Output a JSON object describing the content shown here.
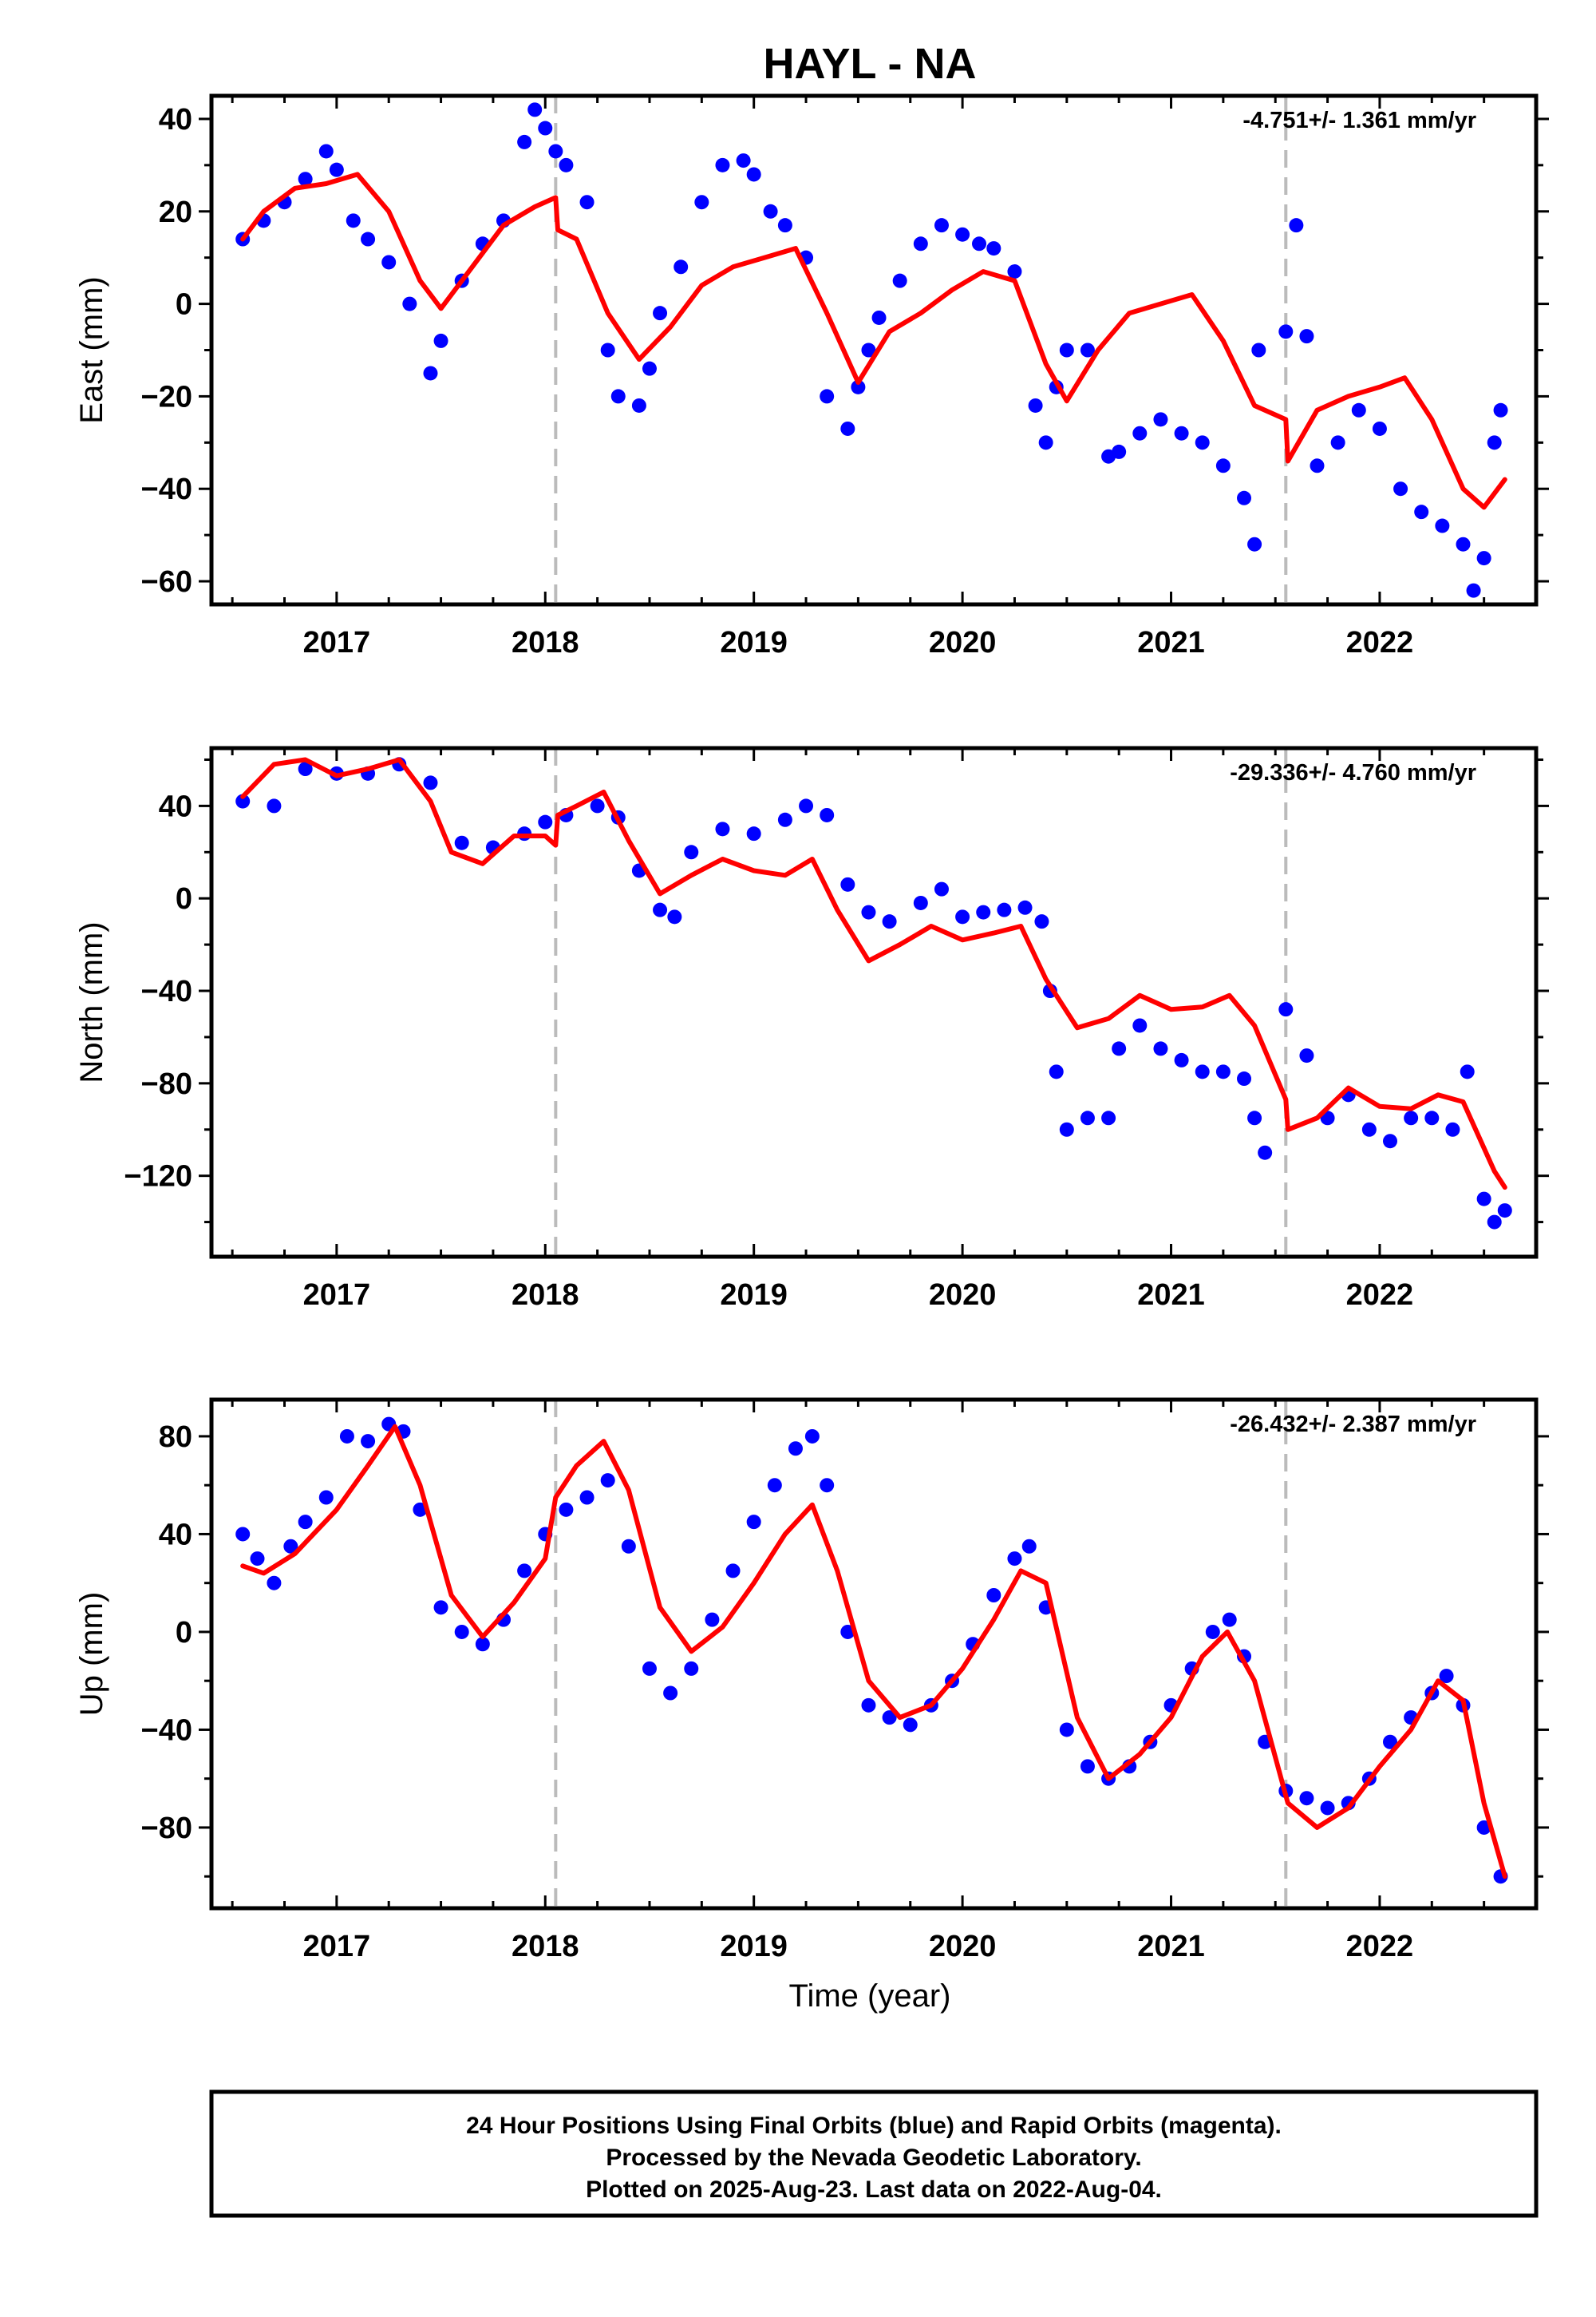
{
  "title": "HAYL - NA",
  "xlabel": "Time (year)",
  "footer": {
    "lines": [
      "24 Hour Positions Using Final Orbits (blue) and Rapid Orbits (magenta).",
      "Processed by the Nevada Geodetic Laboratory.",
      "Plotted on 2025-Aug-23. Last data on 2022-Aug-04."
    ]
  },
  "colors": {
    "data": "#0000ff",
    "model": "#ff0000",
    "steps": "#bbbbbb",
    "frame": "#000000"
  },
  "chart_data": [
    {
      "type": "scatter",
      "component": "East",
      "ylabel": "East (mm)",
      "rate": "-4.751+/- 1.361 mm/yr",
      "xlim": [
        2016.4,
        2022.75
      ],
      "ylim": [
        -65,
        45
      ],
      "xticks": [
        2017,
        2018,
        2019,
        2020,
        2021,
        2022
      ],
      "yticks": [
        -60,
        -40,
        -20,
        0,
        20,
        40
      ],
      "step_epochs": [
        2018.05,
        2021.55
      ],
      "series": [
        {
          "style": "points",
          "color": "#0000ff",
          "x": [
            2016.55,
            2016.65,
            2016.75,
            2016.85,
            2016.95,
            2017.0,
            2017.08,
            2017.15,
            2017.25,
            2017.35,
            2017.45,
            2017.5,
            2017.6,
            2017.7,
            2017.8,
            2017.9,
            2017.95,
            2018.0,
            2018.05,
            2018.1,
            2018.2,
            2018.3,
            2018.35,
            2018.45,
            2018.5,
            2018.55,
            2018.65,
            2018.75,
            2018.85,
            2018.95,
            2019.0,
            2019.08,
            2019.15,
            2019.25,
            2019.35,
            2019.45,
            2019.5,
            2019.55,
            2019.6,
            2019.7,
            2019.8,
            2019.9,
            2020.0,
            2020.08,
            2020.15,
            2020.25,
            2020.35,
            2020.4,
            2020.45,
            2020.5,
            2020.6,
            2020.7,
            2020.75,
            2020.85,
            2020.95,
            2021.05,
            2021.15,
            2021.25,
            2021.35,
            2021.4,
            2021.42,
            2021.55,
            2021.6,
            2021.65,
            2021.7,
            2021.8,
            2021.9,
            2022.0,
            2022.1,
            2022.2,
            2022.3,
            2022.4,
            2022.45,
            2022.5,
            2022.55,
            2022.58
          ],
          "y": [
            14,
            18,
            22,
            27,
            33,
            29,
            18,
            14,
            9,
            0,
            -15,
            -8,
            5,
            13,
            18,
            35,
            42,
            38,
            33,
            30,
            22,
            -10,
            -20,
            -22,
            -14,
            -2,
            8,
            22,
            30,
            31,
            28,
            20,
            17,
            10,
            -20,
            -27,
            -18,
            -10,
            -3,
            5,
            13,
            17,
            15,
            13,
            12,
            7,
            -22,
            -30,
            -18,
            -10,
            -10,
            -33,
            -32,
            -28,
            -25,
            -28,
            -30,
            -35,
            -42,
            -52,
            -10,
            -6,
            17,
            -7,
            -35,
            -30,
            -23,
            -27,
            -40,
            -45,
            -48,
            -52,
            -62,
            -55,
            -30,
            -23
          ]
        },
        {
          "style": "line",
          "color": "#ff0000",
          "x": [
            2016.55,
            2016.65,
            2016.8,
            2016.95,
            2017.1,
            2017.25,
            2017.4,
            2017.5,
            2017.65,
            2017.8,
            2017.95,
            2018.05,
            2018.06,
            2018.15,
            2018.3,
            2018.45,
            2018.6,
            2018.75,
            2018.9,
            2019.05,
            2019.2,
            2019.35,
            2019.5,
            2019.65,
            2019.8,
            2019.95,
            2020.1,
            2020.25,
            2020.4,
            2020.5,
            2020.65,
            2020.8,
            2020.95,
            2021.1,
            2021.25,
            2021.4,
            2021.55,
            2021.56,
            2021.7,
            2021.85,
            2022.0,
            2022.12,
            2022.25,
            2022.4,
            2022.5,
            2022.6
          ],
          "y": [
            14,
            20,
            25,
            26,
            28,
            20,
            5,
            -1,
            8,
            17,
            21,
            23,
            16,
            14,
            -2,
            -12,
            -5,
            4,
            8,
            10,
            12,
            -2,
            -17,
            -6,
            -2,
            3,
            7,
            5,
            -13,
            -21,
            -10,
            -2,
            0,
            2,
            -8,
            -22,
            -25,
            -34,
            -23,
            -20,
            -18,
            -16,
            -25,
            -40,
            -44,
            -38
          ]
        }
      ]
    },
    {
      "type": "scatter",
      "component": "North",
      "ylabel": "North (mm)",
      "rate": "-29.336+/- 4.760 mm/yr",
      "xlim": [
        2016.4,
        2022.75
      ],
      "ylim": [
        -155,
        65
      ],
      "xticks": [
        2017,
        2018,
        2019,
        2020,
        2021,
        2022
      ],
      "yticks": [
        -120,
        -80,
        -40,
        0,
        40
      ],
      "step_epochs": [
        2018.05,
        2021.55
      ],
      "series": [
        {
          "style": "points",
          "color": "#0000ff",
          "x": [
            2016.55,
            2016.7,
            2016.85,
            2017.0,
            2017.15,
            2017.3,
            2017.45,
            2017.6,
            2017.75,
            2017.9,
            2018.0,
            2018.1,
            2018.25,
            2018.35,
            2018.45,
            2018.55,
            2018.62,
            2018.7,
            2018.85,
            2019.0,
            2019.15,
            2019.25,
            2019.35,
            2019.45,
            2019.55,
            2019.65,
            2019.8,
            2019.9,
            2020.0,
            2020.1,
            2020.2,
            2020.3,
            2020.38,
            2020.42,
            2020.45,
            2020.5,
            2020.6,
            2020.7,
            2020.75,
            2020.85,
            2020.95,
            2021.05,
            2021.15,
            2021.25,
            2021.35,
            2021.4,
            2021.45,
            2021.55,
            2021.65,
            2021.75,
            2021.85,
            2021.95,
            2022.05,
            2022.15,
            2022.25,
            2022.35,
            2022.42,
            2022.5,
            2022.55,
            2022.6
          ],
          "y": [
            42,
            40,
            56,
            54,
            54,
            58,
            50,
            24,
            22,
            28,
            33,
            36,
            40,
            35,
            12,
            -5,
            -8,
            20,
            30,
            28,
            34,
            40,
            36,
            6,
            -6,
            -10,
            -2,
            4,
            -8,
            -6,
            -5,
            -4,
            -10,
            -40,
            -75,
            -100,
            -95,
            -95,
            -65,
            -55,
            -65,
            -70,
            -75,
            -75,
            -78,
            -95,
            -110,
            -48,
            -68,
            -95,
            -85,
            -100,
            -105,
            -95,
            -95,
            -100,
            -75,
            -130,
            -140,
            -135
          ]
        },
        {
          "style": "line",
          "color": "#ff0000",
          "x": [
            2016.55,
            2016.7,
            2016.85,
            2017.0,
            2017.15,
            2017.3,
            2017.45,
            2017.55,
            2017.7,
            2017.85,
            2018.0,
            2018.05,
            2018.06,
            2018.15,
            2018.28,
            2018.4,
            2018.55,
            2018.7,
            2018.85,
            2019.0,
            2019.15,
            2019.28,
            2019.4,
            2019.55,
            2019.7,
            2019.85,
            2020.0,
            2020.15,
            2020.28,
            2020.4,
            2020.55,
            2020.7,
            2020.85,
            2021.0,
            2021.15,
            2021.28,
            2021.4,
            2021.55,
            2021.56,
            2021.7,
            2021.85,
            2022.0,
            2022.15,
            2022.28,
            2022.4,
            2022.55,
            2022.6
          ],
          "y": [
            44,
            58,
            60,
            53,
            56,
            60,
            42,
            20,
            15,
            27,
            27,
            23,
            36,
            40,
            46,
            25,
            2,
            10,
            17,
            12,
            10,
            17,
            -5,
            -27,
            -20,
            -12,
            -18,
            -15,
            -12,
            -35,
            -56,
            -52,
            -42,
            -48,
            -47,
            -42,
            -55,
            -87,
            -100,
            -95,
            -82,
            -90,
            -91,
            -85,
            -88,
            -118,
            -125
          ]
        }
      ]
    },
    {
      "type": "scatter",
      "component": "Up",
      "ylabel": "Up (mm)",
      "rate": "-26.432+/- 2.387 mm/yr",
      "xlim": [
        2016.4,
        2022.75
      ],
      "ylim": [
        -113,
        95
      ],
      "xticks": [
        2017,
        2018,
        2019,
        2020,
        2021,
        2022
      ],
      "yticks": [
        -80,
        -40,
        0,
        40,
        80
      ],
      "step_epochs": [
        2018.05,
        2021.55
      ],
      "series": [
        {
          "style": "points",
          "color": "#0000ff",
          "x": [
            2016.55,
            2016.62,
            2016.7,
            2016.78,
            2016.85,
            2016.95,
            2017.05,
            2017.15,
            2017.25,
            2017.32,
            2017.4,
            2017.5,
            2017.6,
            2017.7,
            2017.8,
            2017.9,
            2018.0,
            2018.1,
            2018.2,
            2018.3,
            2018.4,
            2018.5,
            2018.6,
            2018.7,
            2018.8,
            2018.9,
            2019.0,
            2019.1,
            2019.2,
            2019.28,
            2019.35,
            2019.45,
            2019.55,
            2019.65,
            2019.75,
            2019.85,
            2019.95,
            2020.05,
            2020.15,
            2020.25,
            2020.32,
            2020.4,
            2020.5,
            2020.6,
            2020.7,
            2020.8,
            2020.9,
            2021.0,
            2021.1,
            2021.2,
            2021.28,
            2021.35,
            2021.45,
            2021.55,
            2021.65,
            2021.75,
            2021.85,
            2021.95,
            2022.05,
            2022.15,
            2022.25,
            2022.32,
            2022.4,
            2022.5,
            2022.58
          ],
          "y": [
            40,
            30,
            20,
            35,
            45,
            55,
            80,
            78,
            85,
            82,
            50,
            10,
            0,
            -5,
            5,
            25,
            40,
            50,
            55,
            62,
            35,
            -15,
            -25,
            -15,
            5,
            25,
            45,
            60,
            75,
            80,
            60,
            0,
            -30,
            -35,
            -38,
            -30,
            -20,
            -5,
            15,
            30,
            35,
            10,
            -40,
            -55,
            -60,
            -55,
            -45,
            -30,
            -15,
            0,
            5,
            -10,
            -45,
            -65,
            -68,
            -72,
            -70,
            -60,
            -45,
            -35,
            -25,
            -18,
            -30,
            -80,
            -100
          ]
        },
        {
          "style": "line",
          "color": "#ff0000",
          "x": [
            2016.55,
            2016.65,
            2016.8,
            2017.0,
            2017.15,
            2017.28,
            2017.4,
            2017.55,
            2017.7,
            2017.85,
            2018.0,
            2018.05,
            2018.15,
            2018.28,
            2018.4,
            2018.55,
            2018.7,
            2018.85,
            2019.0,
            2019.15,
            2019.28,
            2019.4,
            2019.55,
            2019.7,
            2019.85,
            2020.0,
            2020.15,
            2020.28,
            2020.4,
            2020.55,
            2020.7,
            2020.85,
            2021.0,
            2021.15,
            2021.27,
            2021.4,
            2021.55,
            2021.56,
            2021.7,
            2021.85,
            2022.0,
            2022.15,
            2022.28,
            2022.4,
            2022.5,
            2022.6
          ],
          "y": [
            27,
            24,
            32,
            50,
            68,
            84,
            60,
            15,
            -2,
            12,
            30,
            55,
            68,
            78,
            58,
            10,
            -8,
            2,
            20,
            40,
            52,
            25,
            -20,
            -35,
            -30,
            -15,
            5,
            25,
            20,
            -35,
            -60,
            -50,
            -35,
            -10,
            0,
            -20,
            -67,
            -70,
            -80,
            -72,
            -55,
            -40,
            -20,
            -28,
            -70,
            -100
          ]
        }
      ]
    }
  ]
}
